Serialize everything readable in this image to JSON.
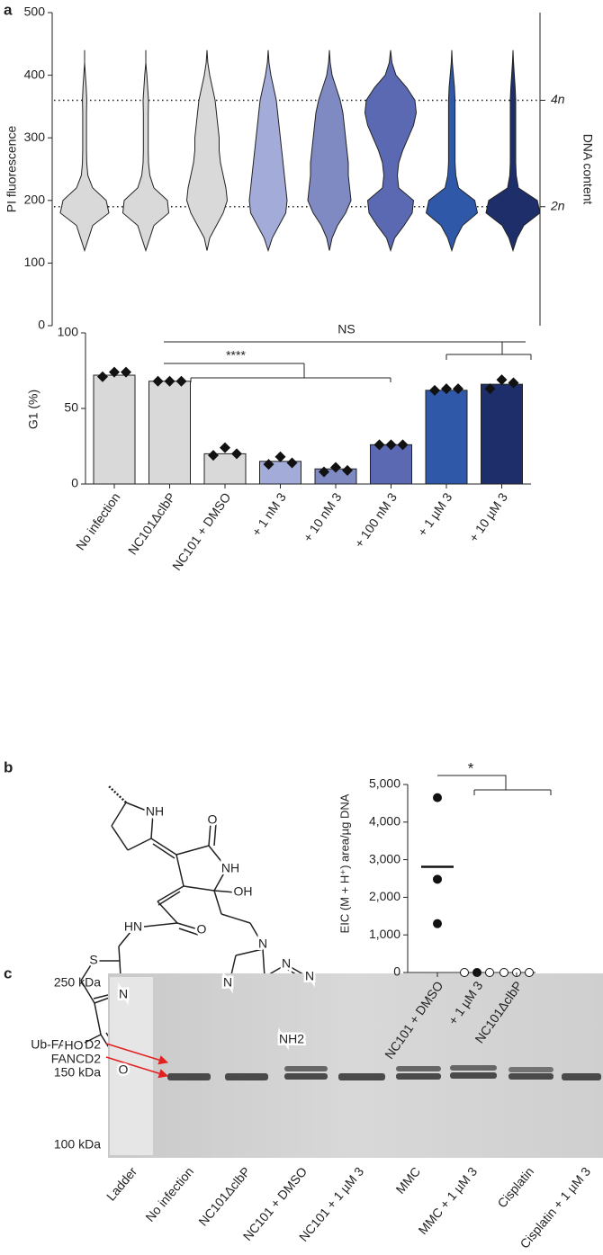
{
  "panels": [
    "a",
    "b",
    "c"
  ],
  "chart_data": [
    {
      "type": "violin",
      "ylabel": "PI fluorescence",
      "y2label": "DNA content",
      "ylim": [
        0,
        500
      ],
      "yticks": [
        0,
        100,
        200,
        300,
        400,
        500
      ],
      "y2lim": [
        0,
        500
      ],
      "y2ticks": [
        {
          "value": 360,
          "label": "4n"
        },
        {
          "value": 190,
          "label": "2n"
        }
      ],
      "levels": [
        120,
        140,
        160,
        180,
        200,
        220,
        240,
        260,
        280,
        300,
        320,
        340,
        360,
        380,
        400,
        420,
        440
      ],
      "series": [
        {
          "color": "#d9d9d9",
          "density": [
            0,
            0.15,
            0.3,
            0.9,
            0.8,
            0.3,
            0.12,
            0.08,
            0.07,
            0.07,
            0.07,
            0.07,
            0.08,
            0.06,
            0.03,
            0,
            0
          ]
        },
        {
          "color": "#d9d9d9",
          "density": [
            0,
            0.15,
            0.3,
            0.85,
            0.8,
            0.3,
            0.15,
            0.1,
            0.09,
            0.09,
            0.09,
            0.09,
            0.1,
            0.07,
            0.04,
            0,
            0
          ]
        },
        {
          "color": "#d9d9d9",
          "density": [
            0,
            0.1,
            0.35,
            0.6,
            0.75,
            0.7,
            0.6,
            0.5,
            0.45,
            0.45,
            0.4,
            0.35,
            0.3,
            0.2,
            0.1,
            0.03,
            0
          ]
        },
        {
          "color": "#a3abd8",
          "density": [
            0,
            0.15,
            0.4,
            0.65,
            0.7,
            0.65,
            0.6,
            0.55,
            0.5,
            0.45,
            0.4,
            0.35,
            0.3,
            0.2,
            0.1,
            0.03,
            0
          ]
        },
        {
          "color": "#7f89c2",
          "density": [
            0,
            0.1,
            0.3,
            0.6,
            0.8,
            0.75,
            0.7,
            0.7,
            0.65,
            0.6,
            0.55,
            0.5,
            0.4,
            0.25,
            0.1,
            0.03,
            0
          ]
        },
        {
          "color": "#5a69b2",
          "density": [
            0,
            0.15,
            0.5,
            0.8,
            0.85,
            0.3,
            0.25,
            0.3,
            0.45,
            0.65,
            0.85,
            0.95,
            0.9,
            0.6,
            0.2,
            0.05,
            0
          ]
        },
        {
          "color": "#2f58a8",
          "density": [
            0,
            0.15,
            0.4,
            0.95,
            0.85,
            0.25,
            0.15,
            0.12,
            0.12,
            0.12,
            0.12,
            0.12,
            0.12,
            0.1,
            0.06,
            0.02,
            0
          ]
        },
        {
          "color": "#1d2e6b",
          "density": [
            0,
            0.15,
            0.4,
            1,
            0.9,
            0.2,
            0.12,
            0.1,
            0.1,
            0.1,
            0.1,
            0.1,
            0.1,
            0.08,
            0.05,
            0.02,
            0
          ]
        }
      ]
    },
    {
      "type": "bar",
      "ylabel": "G1 (%)",
      "ylim": [
        0,
        100
      ],
      "yticks": [
        0,
        50,
        100
      ],
      "categories": [
        "No infection",
        "NC101ΔclbP",
        "NC101 + DMSO",
        "+ 1 nM 3",
        "+ 10 nM 3",
        "+ 100 nM 3",
        "+ 1 µM 3",
        "+ 10 µM 3"
      ],
      "values": [
        72,
        68,
        20,
        15,
        10,
        26,
        62,
        66
      ],
      "colors": [
        "#d9d9d9",
        "#d9d9d9",
        "#d9d9d9",
        "#a3abd8",
        "#7f89c2",
        "#5a69b2",
        "#2f58a8",
        "#1d2e6b"
      ],
      "points": [
        [
          71,
          74,
          74
        ],
        [
          68,
          68,
          68
        ],
        [
          19,
          24,
          20
        ],
        [
          13,
          18,
          14
        ],
        [
          8,
          11,
          9
        ],
        [
          26,
          26,
          26
        ],
        [
          62,
          63,
          63
        ],
        [
          63,
          69,
          67
        ]
      ],
      "annotations": [
        "****",
        "NS"
      ]
    },
    {
      "type": "dot",
      "ylabel": "EIC (M + H⁺) area/µg DNA",
      "ylim": [
        0,
        5000
      ],
      "yticks": [
        0,
        {
          "value": 1000,
          "label": "1,000"
        },
        {
          "value": 2000,
          "label": "2,000"
        },
        {
          "value": 3000,
          "label": "3,000"
        },
        {
          "value": 4000,
          "label": "4,000"
        },
        {
          "value": 5000,
          "label": "5,000"
        }
      ],
      "categories": [
        "NC101 + DMSO",
        "+ 1 µM 3",
        "NC101ΔclbP"
      ],
      "points": [
        [
          4650,
          2480,
          1300
        ],
        [
          0,
          0,
          0
        ],
        [
          0,
          0,
          0
        ]
      ],
      "filled": [
        [
          true,
          true,
          true
        ],
        [
          false,
          true,
          false
        ],
        [
          false,
          false,
          false
        ]
      ],
      "means": [
        2810,
        null,
        null
      ],
      "annotations": [
        "*"
      ]
    }
  ],
  "structure": {
    "labels": [
      "NH",
      "O",
      "NH",
      "OH",
      "HN",
      "O",
      "S",
      "N",
      "HO",
      "O",
      "N",
      "N",
      "N",
      "N",
      "NH2"
    ]
  },
  "gel": {
    "markers": [
      "250 kDa",
      "150 kDa",
      "100 kDa"
    ],
    "bands": [
      "Ub-FANCD2",
      "FANCD2"
    ],
    "lanes": [
      "Ladder",
      "No infection",
      "NC101ΔclbP",
      "NC101 + DMSO",
      "NC101 + 1 µM 3",
      "MMC",
      "MMC + 1 µM 3",
      "Cisplatin",
      "Cisplatin + 1 µM 3"
    ]
  }
}
